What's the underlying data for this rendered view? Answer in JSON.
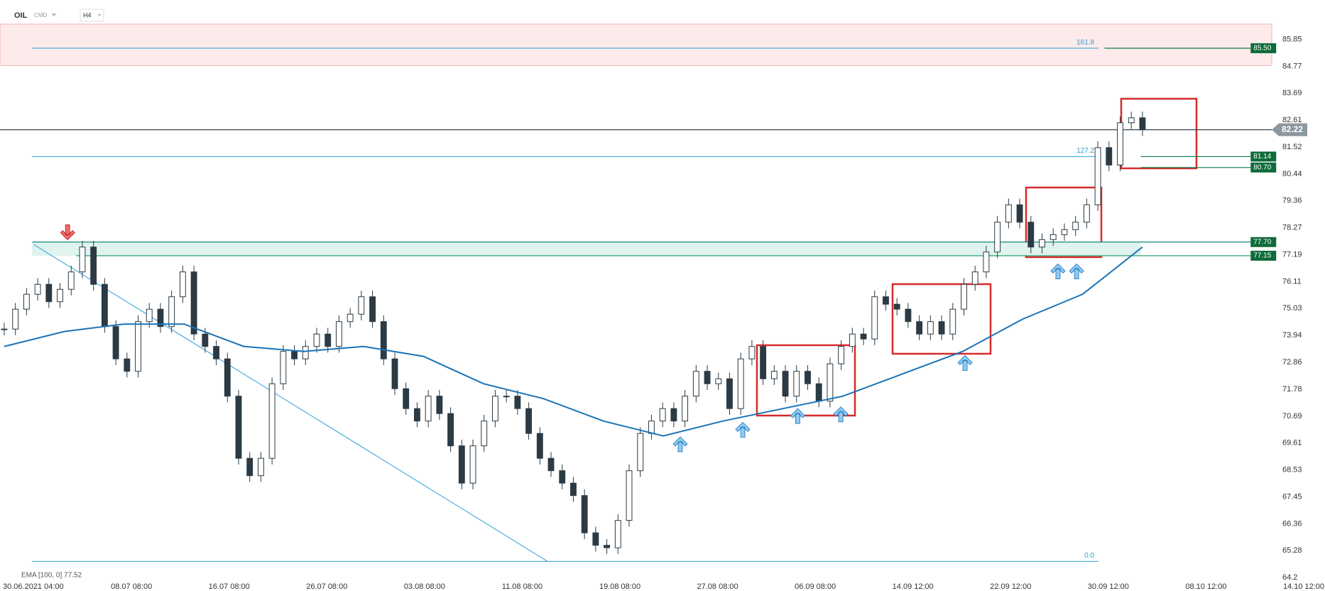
{
  "header": {
    "symbol": "OIL",
    "market": "CMD",
    "interval": "H4"
  },
  "chart_data": {
    "type": "candlestick",
    "categories": [
      "30.06.2021 04:00",
      "08.07 08:00",
      "16.07 08:00",
      "26.07 08:00",
      "03.08 08:00",
      "11.08 08:00",
      "19.08 08:00",
      "27.08 08:00",
      "06.09 08:00",
      "14.09 12:00",
      "22.09 12:00",
      "30.09 12:00",
      "08.10 12:00",
      "14.10 12:00"
    ],
    "price": {
      "values": [
        74.2,
        75.0,
        75.6,
        76.0,
        75.3,
        75.8,
        76.5,
        77.5,
        76.0,
        74.3,
        73.0,
        72.5,
        74.5,
        75.0,
        74.3,
        75.5,
        76.5,
        74.0,
        73.5,
        73.0,
        71.5,
        69.0,
        68.3,
        69.0,
        72.0,
        73.3,
        73.0,
        73.5,
        74.0,
        73.5,
        74.5,
        74.8,
        75.5,
        74.5,
        73.0,
        71.8,
        71.0,
        70.5,
        71.5,
        70.8,
        69.5,
        68.0,
        69.5,
        70.5,
        71.5,
        71.5,
        71.0,
        70.0,
        69.0,
        68.5,
        68.0,
        67.5,
        66.0,
        65.5,
        65.4,
        66.5,
        68.5,
        70.0,
        70.5,
        71.0,
        70.5,
        71.5,
        72.5,
        72.0,
        72.2,
        71.0,
        73.0,
        73.5,
        72.2,
        72.5,
        71.5,
        72.5,
        72.0,
        71.3,
        72.8,
        73.5,
        74.0,
        73.8,
        75.5,
        75.2,
        75.0,
        74.5,
        74.0,
        74.5,
        74.0,
        75.0,
        76.0,
        76.5,
        77.3,
        78.5,
        79.2,
        78.5,
        77.5,
        77.8,
        78.0,
        78.2,
        78.5,
        79.2,
        81.5,
        80.8,
        82.5,
        82.7,
        82.22
      ],
      "color": "#2b3a44"
    },
    "ema": {
      "label": "EMA [100, 0] 77.52",
      "color": "#1a73b8",
      "values": [
        73.5,
        74.1,
        74.4,
        74.4,
        73.5,
        73.3,
        73.5,
        73.1,
        72.0,
        71.4,
        70.5,
        69.9,
        70.5,
        71.0,
        71.5,
        72.4,
        73.3,
        74.6,
        75.6,
        77.5
      ]
    },
    "current": {
      "value": 82.22,
      "label": "82.22"
    },
    "levels": [
      {
        "value": 85.5,
        "label": "85.50"
      },
      {
        "value": 81.14,
        "label": "81.14"
      },
      {
        "value": 80.7,
        "label": "80.70"
      },
      {
        "value": 77.7,
        "label": "77.70"
      },
      {
        "value": 77.15,
        "label": "77.15"
      }
    ],
    "fib": [
      {
        "value": 85.5,
        "label": "161.8"
      },
      {
        "value": 81.14,
        "label": "127.2"
      },
      {
        "value": 64.85,
        "label": "0.0"
      }
    ],
    "trendline": [
      77.6,
      64.85
    ],
    "zone": [
      84.8,
      86.47
    ],
    "ylim": [
      64.06,
      87.44
    ],
    "yticks": [
      85.85,
      84.77,
      83.69,
      82.61,
      81.52,
      80.44,
      79.36,
      78.27,
      77.19,
      76.11,
      75.03,
      73.94,
      72.86,
      71.78,
      70.69,
      69.61,
      68.53,
      67.45,
      66.36,
      65.28,
      64.2
    ]
  }
}
